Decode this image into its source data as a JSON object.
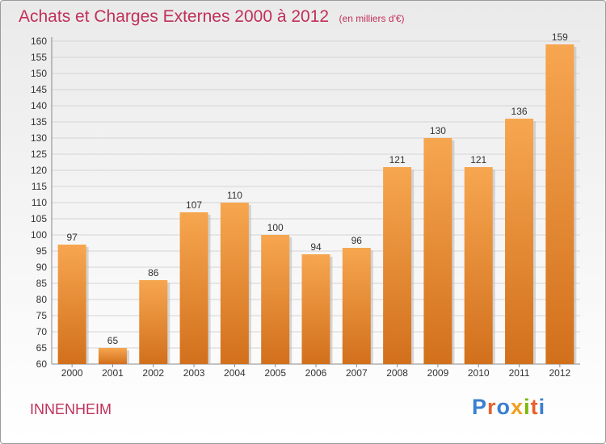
{
  "title": "Achats et Charges Externes 2000 à 2012",
  "subtitle": "(en milliers d'€)",
  "commune": "INNENHEIM",
  "logo": {
    "text": "Proxiti",
    "letters": [
      {
        "char": "P",
        "color": "#3a7fd0"
      },
      {
        "char": "r",
        "color": "#e8612c"
      },
      {
        "char": "o",
        "color": "#3a7fd0"
      },
      {
        "char": "x",
        "color": "#f0a020"
      },
      {
        "char": "i",
        "color": "#7ab800"
      },
      {
        "char": "t",
        "color": "#e8612c"
      },
      {
        "char": "i",
        "color": "#3a7fd0"
      }
    ]
  },
  "colors": {
    "bar_light": "#f7a650",
    "bar_dark": "#d2701c",
    "title": "#c0305a"
  },
  "chart_data": {
    "type": "bar",
    "categories": [
      "2000",
      "2001",
      "2002",
      "2003",
      "2004",
      "2005",
      "2006",
      "2007",
      "2008",
      "2009",
      "2010",
      "2011",
      "2012"
    ],
    "values": [
      97,
      65,
      86,
      107,
      110,
      100,
      94,
      96,
      121,
      130,
      121,
      136,
      159
    ],
    "xlabel": "",
    "ylabel": "",
    "ylim": [
      60,
      160
    ],
    "yticks": [
      60,
      65,
      70,
      75,
      80,
      85,
      90,
      95,
      100,
      105,
      110,
      115,
      120,
      125,
      130,
      135,
      140,
      145,
      150,
      155,
      160
    ],
    "grid": true,
    "data_labels": true
  }
}
